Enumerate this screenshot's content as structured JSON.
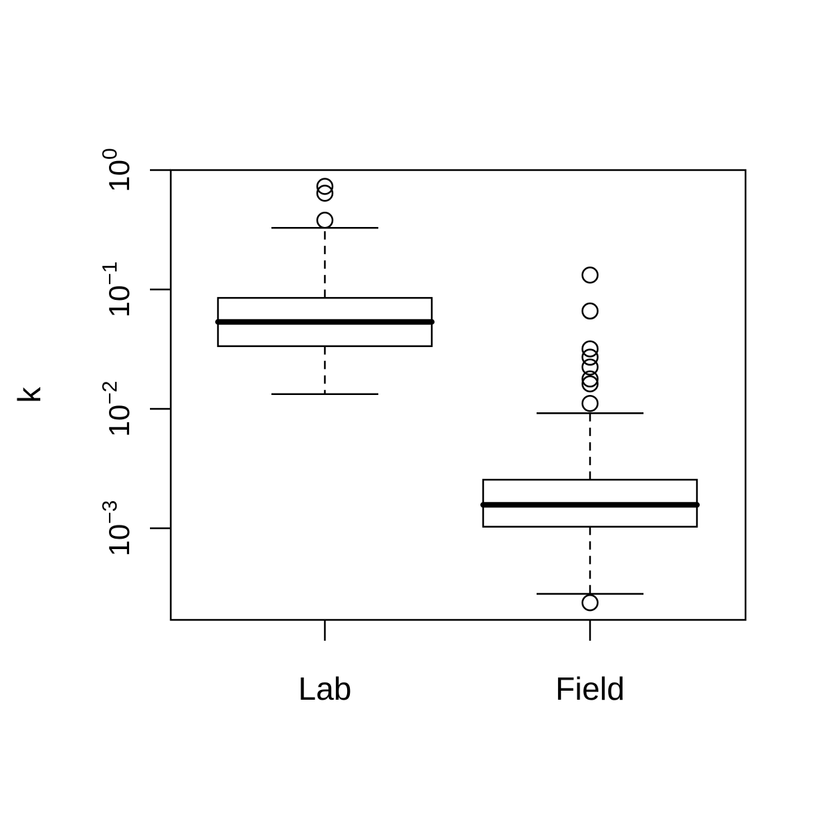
{
  "chart_data": {
    "type": "boxplot",
    "title": "",
    "xlabel": "",
    "ylabel": "k",
    "y_scale": "log10",
    "ylim": [
      0.00017,
      1.0
    ],
    "y_ticks": [
      {
        "value": 1,
        "base": "10",
        "exp": "0"
      },
      {
        "value": 0.1,
        "base": "10",
        "exp": "−1"
      },
      {
        "value": 0.01,
        "base": "10",
        "exp": "−2"
      },
      {
        "value": 0.001,
        "base": "10",
        "exp": "−3"
      }
    ],
    "grid": false,
    "categories": [
      "Lab",
      "Field"
    ],
    "boxes": [
      {
        "name": "Lab",
        "whisker_low": 0.0133,
        "q1": 0.0335,
        "median": 0.0535,
        "q3": 0.085,
        "whisker_high": 0.328,
        "outliers": [
          0.38,
          0.64,
          0.73
        ]
      },
      {
        "name": "Field",
        "whisker_low": 0.000282,
        "q1": 0.00103,
        "median": 0.00157,
        "q3": 0.00255,
        "whisker_high": 0.0092,
        "outliers": [
          0.000238,
          0.0111,
          0.0162,
          0.0178,
          0.0224,
          0.0271,
          0.0318,
          0.066,
          0.132
        ]
      }
    ]
  }
}
